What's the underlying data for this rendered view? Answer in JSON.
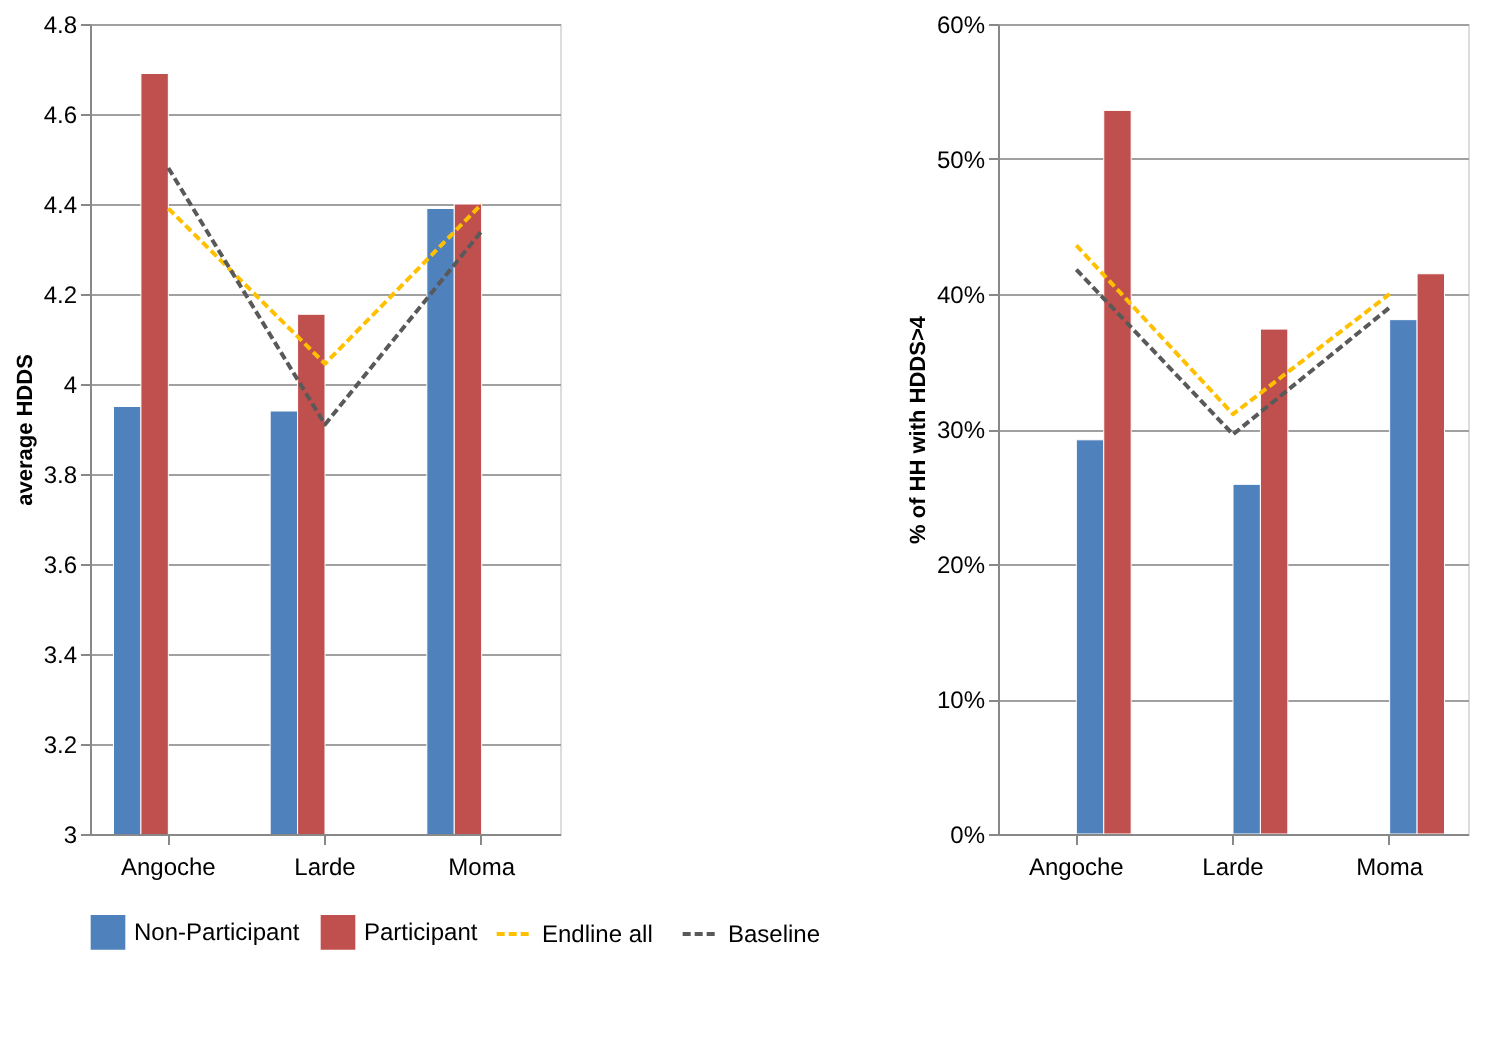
{
  "chart_data": [
    {
      "type": "bar",
      "categories": [
        "Angoche",
        "Larde",
        "Moma"
      ],
      "ylabel": "average HDDS",
      "ylim": [
        3,
        4.8
      ],
      "yticks": [
        3,
        3.2,
        3.4,
        3.6,
        3.8,
        4,
        4.2,
        4.4,
        4.6,
        4.8
      ],
      "grid": "y",
      "legend": "bottom",
      "series": [
        {
          "name": "Non-Participant",
          "color": "#4f81bd",
          "values": [
            3.95,
            3.94,
            4.39
          ]
        },
        {
          "name": "Participant",
          "color": "#c0504d",
          "values": [
            4.69,
            4.155,
            4.4
          ]
        },
        {
          "name": "Endline all",
          "type": "line",
          "line_style": "dashed",
          "color": "#ffc000",
          "values": [
            4.39,
            4.045,
            4.4
          ]
        },
        {
          "name": "Baseline",
          "type": "line",
          "line_style": "dashed",
          "color": "#595959",
          "values": [
            4.48,
            3.91,
            4.34
          ]
        }
      ]
    },
    {
      "type": "bar",
      "categories": [
        "Angoche",
        "Larde",
        "Moma"
      ],
      "ylabel": "% of HH with HDDS>4",
      "ylim": [
        0,
        60
      ],
      "yticks": [
        {
          "value": 0,
          "label": "0%"
        },
        {
          "value": 10,
          "label": "10%"
        },
        {
          "value": 20,
          "label": "20%"
        },
        {
          "value": 30,
          "label": "30%"
        },
        {
          "value": 40,
          "label": "40%"
        },
        {
          "value": 50,
          "label": "50%"
        },
        {
          "value": 60,
          "label": "60%"
        }
      ],
      "grid": "y",
      "series": [
        {
          "color": "#4f81bd",
          "values": [
            29.2,
            25.9,
            38.1
          ]
        },
        {
          "color": "#c0504d",
          "values": [
            53.6,
            37.4,
            41.5
          ]
        },
        {
          "type": "line",
          "line_style": "dashed",
          "color": "#ffc000",
          "values": [
            43.6,
            31.1,
            40.0
          ]
        },
        {
          "type": "line",
          "line_style": "dashed",
          "color": "#595959",
          "values": [
            41.8,
            29.6,
            39.0
          ]
        }
      ]
    }
  ]
}
